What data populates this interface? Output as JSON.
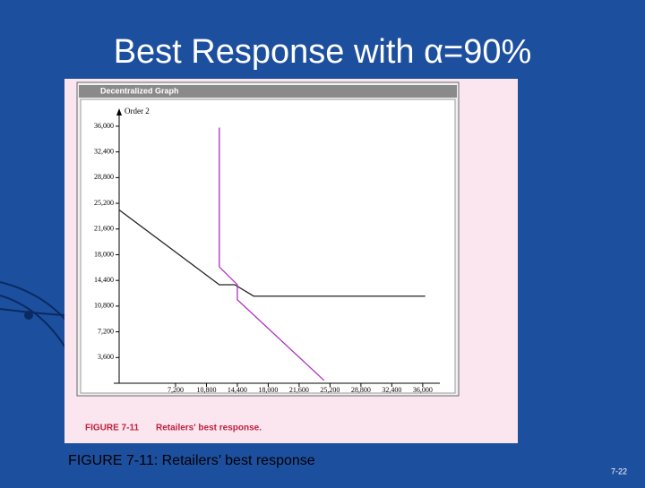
{
  "slide_title": "Best Response with α=90%",
  "caption": "FIGURE 7-11: Retailers’ best response",
  "page_number": "7-22",
  "chart_data": {
    "type": "line",
    "window_title": "Decentralized Graph",
    "y_label": "Order 2",
    "figure_label": "FIGURE 7-11",
    "figure_caption": "Retailers' best response.",
    "xlim": [
      0,
      38000
    ],
    "ylim": [
      0,
      38000
    ],
    "xticks": [
      {
        "value": 7200,
        "label": "7,200"
      },
      {
        "value": 10800,
        "label": "10,800"
      },
      {
        "value": 14400,
        "label": "14,400"
      },
      {
        "value": 18000,
        "label": "18,000"
      },
      {
        "value": 21600,
        "label": "21,600"
      },
      {
        "value": 25200,
        "label": "25,200"
      },
      {
        "value": 28800,
        "label": "28,800"
      },
      {
        "value": 32400,
        "label": "32,400"
      },
      {
        "value": 36000,
        "label": "36,000"
      }
    ],
    "yticks": [
      {
        "value": 3600,
        "label": "3,600"
      },
      {
        "value": 7200,
        "label": "7,200"
      },
      {
        "value": 10800,
        "label": "10,800"
      },
      {
        "value": 14400,
        "label": "14,400"
      },
      {
        "value": 18000,
        "label": "18,000"
      },
      {
        "value": 21600,
        "label": "21,600"
      },
      {
        "value": 25200,
        "label": "25,200"
      },
      {
        "value": 28800,
        "label": "28,800"
      },
      {
        "value": 32400,
        "label": "32,400"
      },
      {
        "value": 36000,
        "label": "36,000"
      }
    ],
    "series": [
      {
        "color": "#222222",
        "x": [
          600,
          12300,
          14100,
          16300,
          36300
        ],
        "values": [
          24300,
          13800,
          13800,
          12200,
          12200
        ]
      },
      {
        "color": "#b030c0",
        "x": [
          12300,
          12300,
          14400,
          14400,
          24500
        ],
        "values": [
          35800,
          16300,
          13800,
          11700,
          400
        ]
      }
    ]
  }
}
